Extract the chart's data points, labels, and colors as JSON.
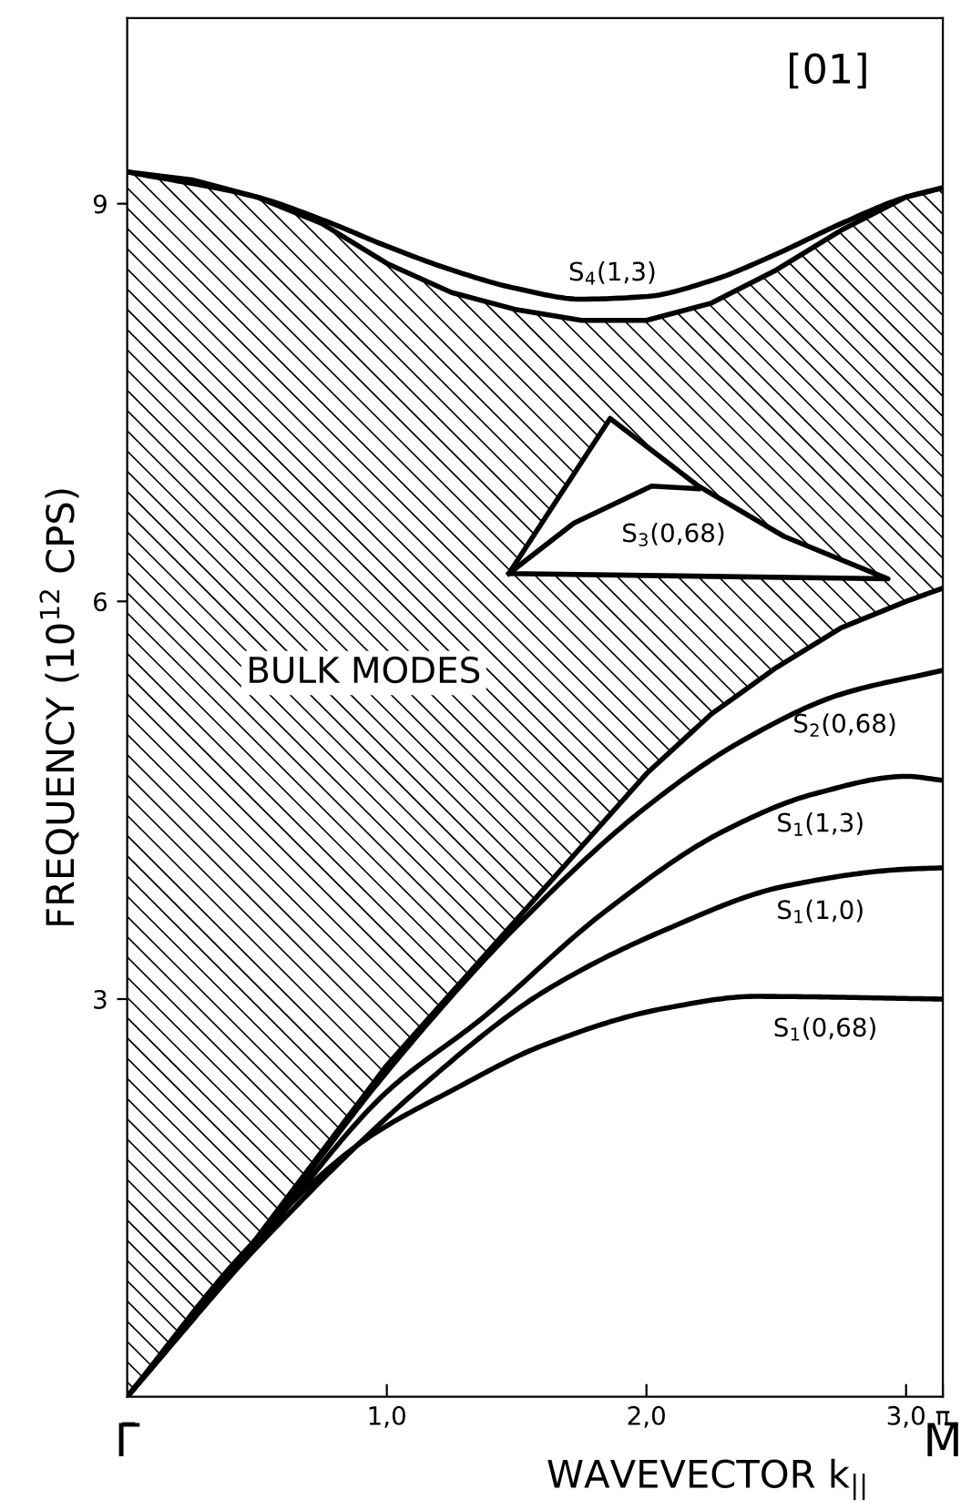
{
  "chart_data": {
    "type": "line",
    "xlabel": "WAVEVECTOR k$_{||}$",
    "ylabel": "FREQUENCY (10$^{12}$ CPS)",
    "xlim": [
      0,
      3.1416
    ],
    "ylim": [
      0,
      10.4
    ],
    "xticks": [
      {
        "value": 1,
        "label": "1,0"
      },
      {
        "value": 2,
        "label": "2,0"
      },
      {
        "value": 3,
        "label": "3,0"
      },
      {
        "value": 3.1416,
        "label": "π"
      }
    ],
    "yticks": [
      3,
      6,
      9
    ],
    "grid": false,
    "legend": false,
    "stacked": true,
    "series": [
      {
        "type": "area",
        "color": "#000000",
        "x": [
          0,
          0.25,
          0.5,
          0.75,
          1.0,
          1.25,
          1.5,
          1.75,
          2.0,
          2.25,
          2.5,
          2.75,
          3.0,
          3.1416
        ],
        "values": [
          0,
          0.6,
          1.2,
          1.85,
          2.5,
          3.05,
          3.6,
          4.15,
          4.7,
          5.15,
          5.5,
          5.8,
          6.0,
          6.1
        ]
      },
      {
        "type": "area",
        "color": "#000000",
        "x": [
          0,
          0.25,
          0.5,
          0.75,
          1.0,
          1.25,
          1.5,
          1.75,
          2.0,
          2.25,
          2.5,
          2.75,
          3.0,
          3.1416
        ],
        "values": [
          9.24,
          8.58,
          7.85,
          7.0,
          6.05,
          5.28,
          4.6,
          3.97,
          3.42,
          3.1,
          3.0,
          3.0,
          3.05,
          3.02
        ]
      },
      {
        "name": "S$_{4}$(1,3)",
        "color": "#000000",
        "x": [
          0,
          0.5,
          0.75,
          1.0,
          1.25,
          1.5,
          1.75,
          2.0,
          2.25,
          2.5,
          2.75,
          3.0,
          3.1416
        ],
        "values": [
          9.24,
          9.05,
          8.88,
          8.68,
          8.5,
          8.36,
          8.28,
          8.3,
          8.42,
          8.62,
          8.85,
          9.05,
          9.12
        ]
      },
      {
        "name": "S$_{3}$(0,68)",
        "color": "#000000",
        "x": [
          1.47,
          1.72,
          2.02,
          2.2
        ],
        "values": [
          6.21,
          6.59,
          6.87,
          6.85
        ]
      },
      {
        "name": "S$_{2}$(0,68)",
        "color": "#000000",
        "x": [
          0,
          0.5,
          1.0,
          1.5,
          2.0,
          2.37,
          2.75,
          3.1416
        ],
        "values": [
          0,
          1.18,
          2.45,
          3.55,
          4.45,
          4.95,
          5.3,
          5.48
        ]
      },
      {
        "name": "S$_{1}$(1,3)",
        "color": "#000000",
        "x": [
          0,
          0.5,
          1.0,
          1.37,
          1.84,
          2.3,
          2.65,
          3.0,
          3.1416
        ],
        "values": [
          0,
          1.15,
          2.3,
          2.86,
          3.66,
          4.27,
          4.55,
          4.68,
          4.65
        ]
      },
      {
        "name": "S$_{1}$(1,0)",
        "color": "#000000",
        "x": [
          0,
          0.5,
          1.14,
          1.6,
          2.07,
          2.53,
          3.0,
          3.1416
        ],
        "values": [
          0,
          1.13,
          2.35,
          3.05,
          3.52,
          3.85,
          3.98,
          3.99
        ]
      },
      {
        "name": "S$_{1}$(0,68)",
        "color": "#000000",
        "x": [
          0,
          0.45,
          0.91,
          1.26,
          1.6,
          2.07,
          2.42,
          3.1416
        ],
        "values": [
          0,
          1.09,
          1.93,
          2.32,
          2.65,
          2.93,
          3.02,
          3.0
        ]
      }
    ],
    "annotations": [
      "[01]",
      "BULK MODES",
      "Γ̄",
      "M̄"
    ]
  }
}
